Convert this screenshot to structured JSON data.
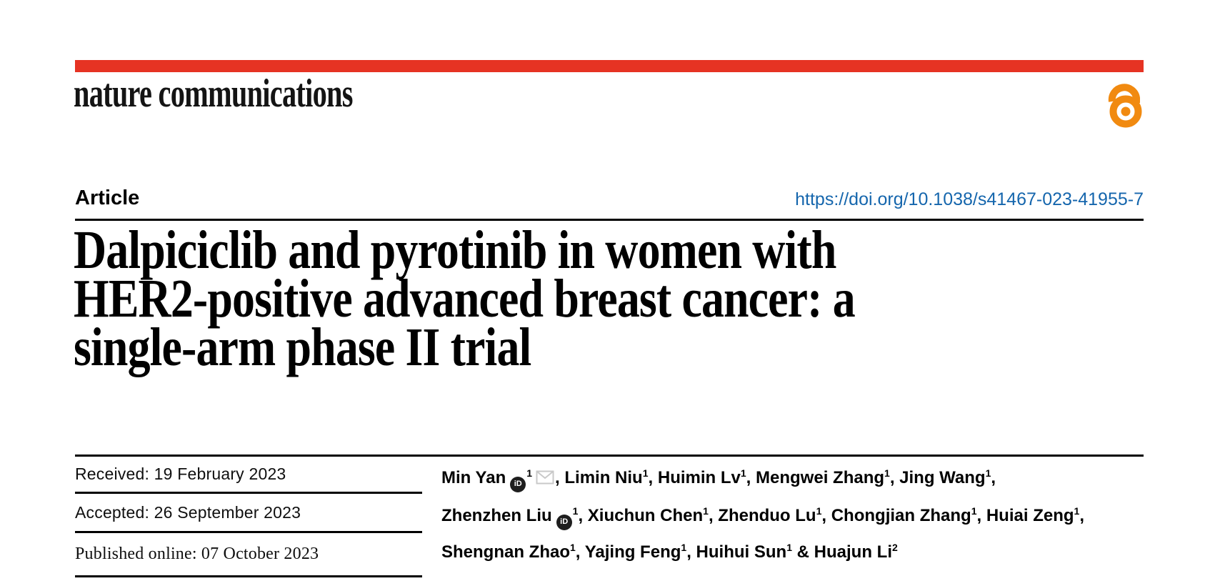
{
  "brand": {
    "logo": "nature communications",
    "red_bar_color": "#e63323",
    "open_access_color": "#f18a10"
  },
  "article": {
    "type_label": "Article",
    "doi": "https://doi.org/10.1038/s41467-023-41955-7",
    "doi_color": "#1566ad"
  },
  "title": {
    "lines": [
      "Dalpiciclib and pyrotinib in women with",
      "HER2-positive advanced breast cancer: a",
      "single-arm phase II trial"
    ]
  },
  "dates": {
    "rows": [
      {
        "text": "Received: 19 February 2023"
      },
      {
        "text": "Accepted: 26 September 2023"
      },
      {
        "text": "Published online: 07 October 2023"
      }
    ]
  },
  "authors": {
    "lines": [
      [
        {
          "name": "Min Yan",
          "orcid": true,
          "sup": "1",
          "envelope": true,
          "sep": ", "
        },
        {
          "name": "Limin Niu",
          "sup": "1",
          "sep": ", "
        },
        {
          "name": "Huimin Lv",
          "sup": "1",
          "sep": ", "
        },
        {
          "name": "Mengwei Zhang",
          "sup": "1",
          "sep": ", "
        },
        {
          "name": "Jing Wang",
          "sup": "1",
          "sep": ","
        }
      ],
      [
        {
          "name": "Zhenzhen Liu",
          "orcid": true,
          "sup": "1",
          "sep": ", "
        },
        {
          "name": "Xiuchun Chen",
          "sup": "1",
          "sep": ", "
        },
        {
          "name": "Zhenduo Lu",
          "sup": "1",
          "sep": ", "
        },
        {
          "name": "Chongjian Zhang",
          "sup": "1",
          "sep": ", "
        },
        {
          "name": "Huiai Zeng",
          "sup": "1",
          "sep": ","
        }
      ],
      [
        {
          "name": "Shengnan Zhao",
          "sup": "1",
          "sep": ", "
        },
        {
          "name": "Yajing Feng",
          "sup": "1",
          "sep": ", "
        },
        {
          "name": "Huihui Sun",
          "sup": "1",
          "sep": " & "
        },
        {
          "name": "Huajun Li",
          "sup": "2",
          "sep": ""
        }
      ]
    ]
  }
}
